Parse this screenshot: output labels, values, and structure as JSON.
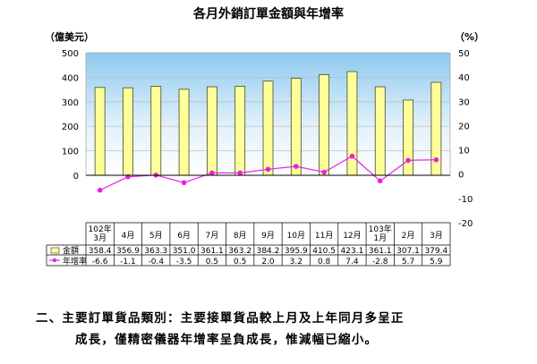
{
  "chart_data": {
    "type": "bar+line",
    "title": "各月外銷訂單金額與年增率",
    "y_left_unit": "（億美元）",
    "y_right_unit": "（%）",
    "y_left_range": [
      0,
      500
    ],
    "y_left_ticks": [
      "500",
      "400",
      "300",
      "200",
      "100",
      "0"
    ],
    "y_right_range": [
      -20,
      50
    ],
    "y_right_ticks": [
      "50",
      "40",
      "30",
      "20",
      "10",
      "0",
      "-10",
      "-20"
    ],
    "categories": [
      [
        "102年",
        "3月"
      ],
      [
        "4月"
      ],
      [
        "5月"
      ],
      [
        "6月"
      ],
      [
        "7月"
      ],
      [
        "8月"
      ],
      [
        "9月"
      ],
      [
        "10月"
      ],
      [
        "11月"
      ],
      [
        "12月"
      ],
      [
        "103年",
        "1月"
      ],
      [
        "2月"
      ],
      [
        "3月"
      ]
    ],
    "series": [
      {
        "name": "金額",
        "type": "bar",
        "axis": "left",
        "color": "#ffff99",
        "values": [
          358.4,
          356.9,
          363.3,
          351.0,
          361.1,
          363.2,
          384.2,
          395.9,
          410.5,
          423.1,
          361.1,
          307.1,
          379.4
        ],
        "labels": [
          "358.4",
          "356.9",
          "363.3",
          "351.0",
          "361.1",
          "363.2",
          "384.2",
          "395.9",
          "410.5",
          "423.1",
          "361.1",
          "307.1",
          "379.4"
        ]
      },
      {
        "name": "年增率",
        "type": "line",
        "axis": "right",
        "color": "#e81ee8",
        "values": [
          -6.6,
          -1.1,
          -0.4,
          -3.5,
          0.5,
          0.5,
          2.0,
          3.2,
          0.8,
          7.4,
          -2.8,
          5.7,
          5.9
        ],
        "labels": [
          "-6.6",
          "-1.1",
          "-0.4",
          "-3.5",
          "0.5",
          "0.5",
          "2.0",
          "3.2",
          "0.8",
          "7.4",
          "-2.8",
          "5.7",
          "5.9"
        ]
      }
    ],
    "grid": true
  },
  "paragraph": {
    "line1": "二、主要訂單貨品類別：主要接單貨品較上月及上年同月多呈正",
    "line2": "成長，僅精密儀器年增率呈負成長，惟減幅已縮小。"
  }
}
